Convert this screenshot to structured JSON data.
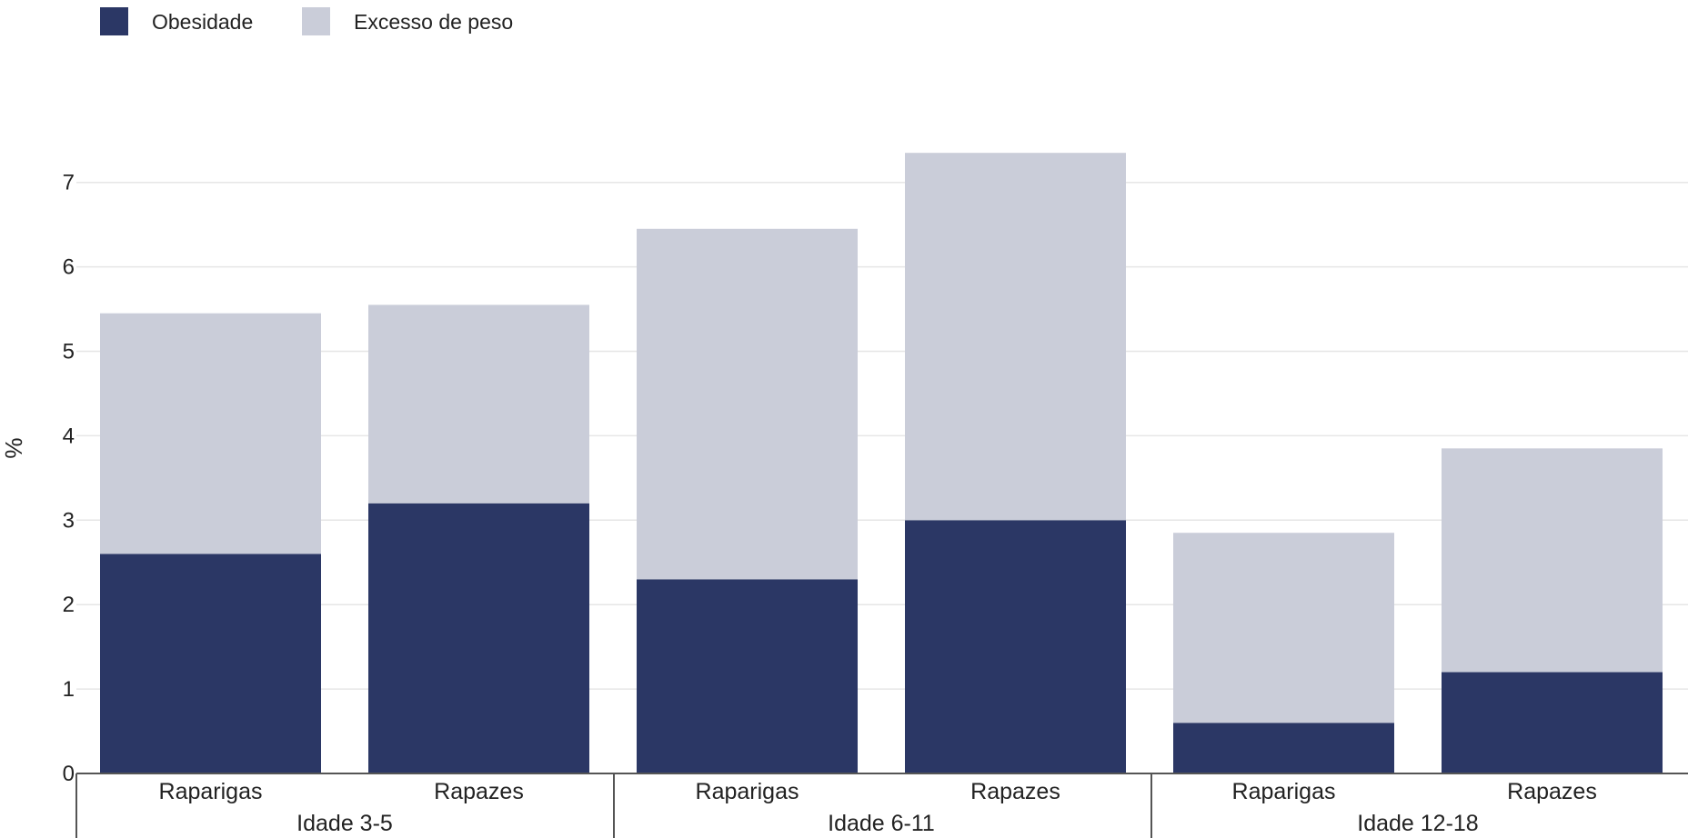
{
  "chart_data": {
    "type": "bar",
    "stacked": true,
    "ylabel": "%",
    "ylim": [
      0,
      7.5
    ],
    "yticks": [
      0,
      1,
      2,
      3,
      4,
      5,
      6,
      7
    ],
    "grid": true,
    "legend_position": "top-left",
    "groups": [
      "Idade 3-5",
      "Idade 6-11",
      "Idade 12-18"
    ],
    "categories": [
      "Raparigas",
      "Rapazes",
      "Raparigas",
      "Rapazes",
      "Raparigas",
      "Rapazes"
    ],
    "category_groups": [
      0,
      0,
      1,
      1,
      2,
      2
    ],
    "series": [
      {
        "name": "Obesidade",
        "color": "#2b3765",
        "values": [
          2.6,
          3.2,
          2.3,
          3.0,
          0.6,
          1.2
        ]
      },
      {
        "name": "Excesso de peso",
        "color": "#cacdd9",
        "values": [
          2.85,
          2.35,
          4.15,
          4.35,
          2.25,
          2.65
        ]
      }
    ]
  }
}
